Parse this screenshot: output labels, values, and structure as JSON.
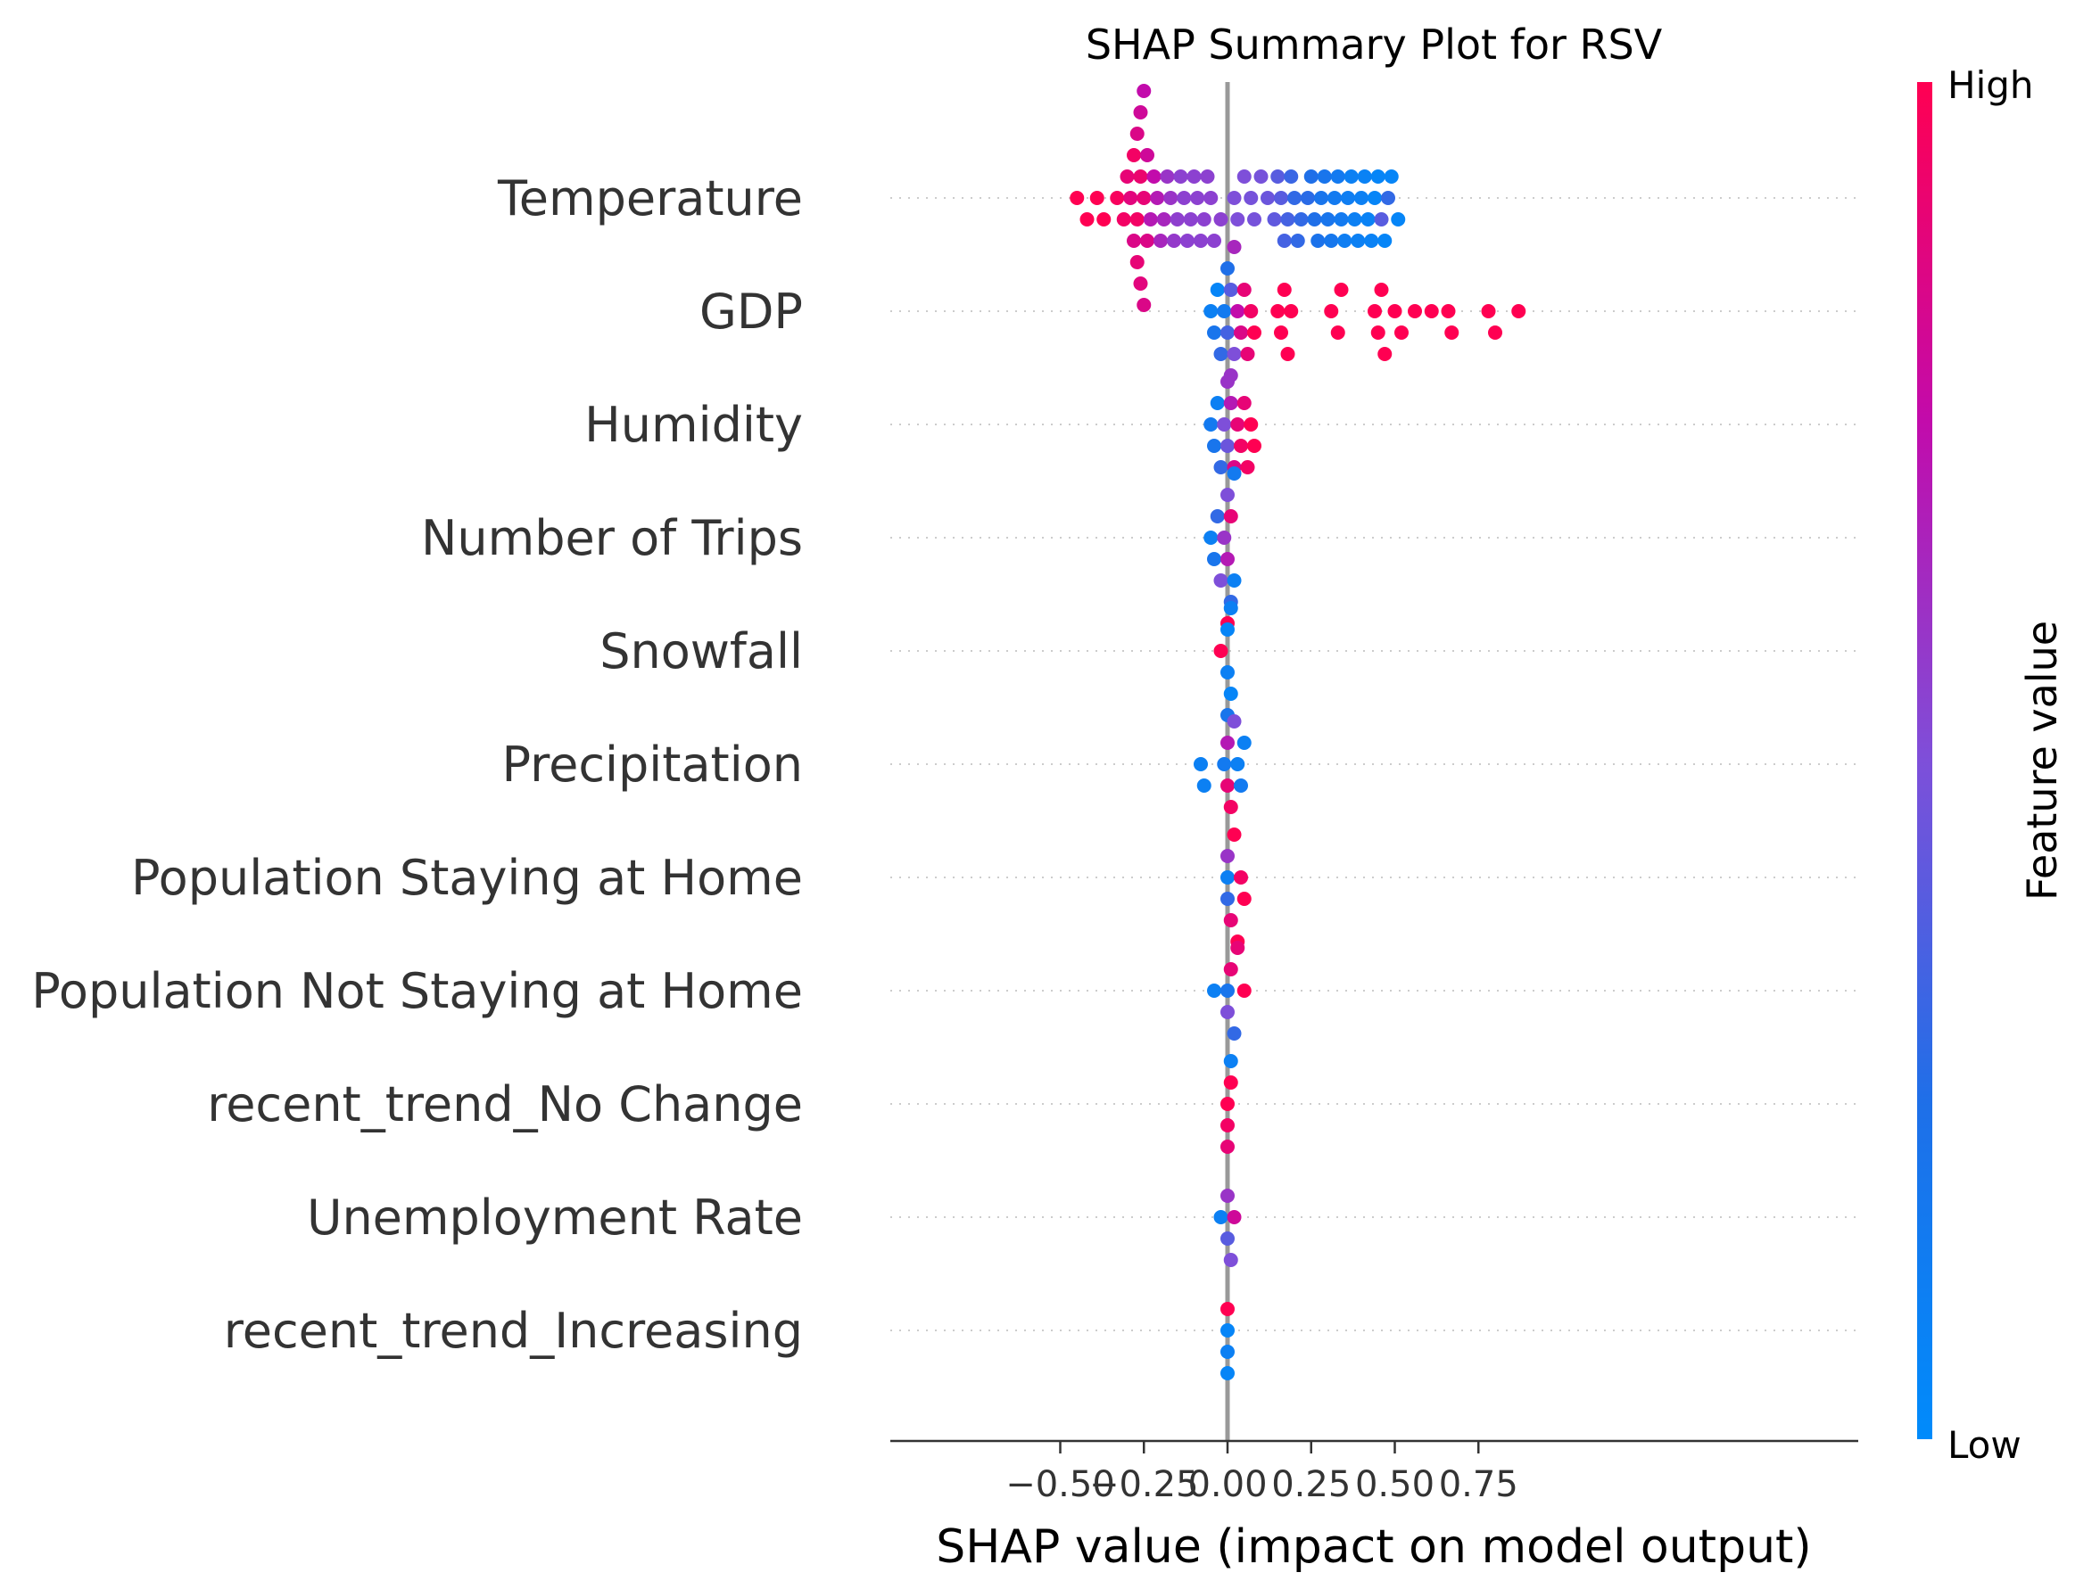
{
  "chart_data": {
    "type": "scatter",
    "title": "SHAP Summary Plot for RSV",
    "xlabel": "SHAP value (impact on model output)",
    "ylabel": "",
    "xlim": [
      -0.5,
      0.94
    ],
    "xticks": [
      -0.5,
      -0.25,
      0.0,
      0.25,
      0.5,
      0.75
    ],
    "xtick_labels": [
      "−0.50",
      "−0.25",
      "0.00",
      "0.25",
      "0.50",
      "0.75"
    ],
    "grid": false,
    "zero_line": 0.0,
    "colorbar": {
      "title": "Feature value",
      "high_label": "High",
      "low_label": "Low",
      "low_color": "#008bfb",
      "high_color": "#ff0052"
    },
    "features": [
      {
        "name": "Temperature",
        "points": [
          [
            -0.45,
            1.0
          ],
          [
            -0.42,
            1.0
          ],
          [
            -0.39,
            1.0
          ],
          [
            -0.37,
            1.0
          ],
          [
            -0.33,
            0.97
          ],
          [
            -0.31,
            0.95
          ],
          [
            -0.3,
            0.9
          ],
          [
            -0.29,
            0.88
          ],
          [
            -0.28,
            0.85
          ],
          [
            -0.28,
            0.95
          ],
          [
            -0.27,
            0.95
          ],
          [
            -0.27,
            0.9
          ],
          [
            -0.27,
            0.85
          ],
          [
            -0.26,
            0.92
          ],
          [
            -0.26,
            0.88
          ],
          [
            -0.26,
            0.8
          ],
          [
            -0.25,
            0.9
          ],
          [
            -0.25,
            0.85
          ],
          [
            -0.25,
            0.75
          ],
          [
            -0.24,
            0.85
          ],
          [
            -0.24,
            0.8
          ],
          [
            -0.23,
            0.7
          ],
          [
            -0.22,
            0.75
          ],
          [
            -0.21,
            0.7
          ],
          [
            -0.2,
            0.65
          ],
          [
            -0.19,
            0.65
          ],
          [
            -0.18,
            0.6
          ],
          [
            -0.17,
            0.6
          ],
          [
            -0.16,
            0.58
          ],
          [
            -0.15,
            0.56
          ],
          [
            -0.14,
            0.55
          ],
          [
            -0.13,
            0.55
          ],
          [
            -0.12,
            0.55
          ],
          [
            -0.11,
            0.55
          ],
          [
            -0.1,
            0.55
          ],
          [
            -0.09,
            0.55
          ],
          [
            -0.08,
            0.55
          ],
          [
            -0.07,
            0.55
          ],
          [
            -0.06,
            0.55
          ],
          [
            -0.05,
            0.55
          ],
          [
            -0.04,
            0.55
          ],
          [
            -0.02,
            0.55
          ],
          [
            0.02,
            0.5
          ],
          [
            0.03,
            0.5
          ],
          [
            0.05,
            0.5
          ],
          [
            0.07,
            0.48
          ],
          [
            0.08,
            0.48
          ],
          [
            0.1,
            0.48
          ],
          [
            0.12,
            0.45
          ],
          [
            0.14,
            0.42
          ],
          [
            0.15,
            0.4
          ],
          [
            0.16,
            0.4
          ],
          [
            0.17,
            0.35
          ],
          [
            0.18,
            0.35
          ],
          [
            0.19,
            0.32
          ],
          [
            0.2,
            0.3
          ],
          [
            0.21,
            0.3
          ],
          [
            0.22,
            0.3
          ],
          [
            0.24,
            0.28
          ],
          [
            0.25,
            0.25
          ],
          [
            0.26,
            0.25
          ],
          [
            0.27,
            0.22
          ],
          [
            0.28,
            0.2
          ],
          [
            0.29,
            0.2
          ],
          [
            0.3,
            0.2
          ],
          [
            0.31,
            0.18
          ],
          [
            0.32,
            0.15
          ],
          [
            0.33,
            0.15
          ],
          [
            0.34,
            0.15
          ],
          [
            0.35,
            0.12
          ],
          [
            0.36,
            0.12
          ],
          [
            0.37,
            0.1
          ],
          [
            0.38,
            0.1
          ],
          [
            0.39,
            0.1
          ],
          [
            0.4,
            0.1
          ],
          [
            0.41,
            0.08
          ],
          [
            0.42,
            0.08
          ],
          [
            0.43,
            0.08
          ],
          [
            0.44,
            0.05
          ],
          [
            0.45,
            0.05
          ],
          [
            0.46,
            0.4
          ],
          [
            0.47,
            0.05
          ],
          [
            0.48,
            0.3
          ],
          [
            0.49,
            0.05
          ],
          [
            0.51,
            0.05
          ]
        ]
      },
      {
        "name": "GDP",
        "points": [
          [
            -0.05,
            0.1
          ],
          [
            -0.04,
            0.2
          ],
          [
            -0.03,
            0.05
          ],
          [
            -0.02,
            0.3
          ],
          [
            -0.01,
            0.15
          ],
          [
            0.0,
            0.35
          ],
          [
            0.0,
            0.25
          ],
          [
            0.01,
            0.4
          ],
          [
            0.01,
            0.6
          ],
          [
            0.02,
            0.5
          ],
          [
            0.02,
            0.65
          ],
          [
            0.03,
            0.75
          ],
          [
            0.04,
            0.85
          ],
          [
            0.05,
            0.9
          ],
          [
            0.06,
            0.9
          ],
          [
            0.07,
            0.95
          ],
          [
            0.08,
            1.0
          ],
          [
            0.15,
            1.0
          ],
          [
            0.16,
            1.0
          ],
          [
            0.17,
            1.0
          ],
          [
            0.18,
            1.0
          ],
          [
            0.19,
            1.0
          ],
          [
            0.31,
            1.0
          ],
          [
            0.33,
            1.0
          ],
          [
            0.34,
            1.0
          ],
          [
            0.44,
            1.0
          ],
          [
            0.45,
            1.0
          ],
          [
            0.46,
            1.0
          ],
          [
            0.47,
            1.0
          ],
          [
            0.5,
            1.0
          ],
          [
            0.52,
            1.0
          ],
          [
            0.56,
            1.0
          ],
          [
            0.61,
            1.0
          ],
          [
            0.66,
            1.0
          ],
          [
            0.67,
            1.0
          ],
          [
            0.78,
            1.0
          ],
          [
            0.8,
            1.0
          ],
          [
            0.87,
            1.0
          ]
        ]
      },
      {
        "name": "Humidity",
        "points": [
          [
            -0.05,
            0.15
          ],
          [
            -0.04,
            0.2
          ],
          [
            -0.03,
            0.1
          ],
          [
            -0.02,
            0.3
          ],
          [
            -0.01,
            0.5
          ],
          [
            0.0,
            0.45
          ],
          [
            0.0,
            0.6
          ],
          [
            0.01,
            0.7
          ],
          [
            0.02,
            0.85
          ],
          [
            0.03,
            0.9
          ],
          [
            0.04,
            0.95
          ],
          [
            0.05,
            0.9
          ],
          [
            0.06,
            0.95
          ],
          [
            0.07,
            1.0
          ],
          [
            0.08,
            1.0
          ]
        ]
      },
      {
        "name": "Number of Trips",
        "points": [
          [
            -0.05,
            0.1
          ],
          [
            -0.04,
            0.2
          ],
          [
            -0.03,
            0.3
          ],
          [
            -0.02,
            0.5
          ],
          [
            -0.01,
            0.6
          ],
          [
            0.0,
            0.7
          ],
          [
            0.0,
            0.5
          ],
          [
            0.01,
            0.9
          ],
          [
            0.01,
            0.3
          ],
          [
            0.02,
            0.1
          ],
          [
            0.02,
            0.15
          ],
          [
            0.0,
            1.0
          ]
        ]
      },
      {
        "name": "Snowfall",
        "points": [
          [
            -0.02,
            1.0
          ],
          [
            0.0,
            0.1
          ],
          [
            0.0,
            0.05
          ],
          [
            0.01,
            0.05
          ],
          [
            0.01,
            0.1
          ],
          [
            0.0,
            0.2
          ]
        ]
      },
      {
        "name": "Precipitation",
        "points": [
          [
            -0.08,
            0.1
          ],
          [
            -0.07,
            0.1
          ],
          [
            -0.01,
            0.15
          ],
          [
            0.0,
            0.9
          ],
          [
            0.0,
            0.7
          ],
          [
            0.01,
            0.95
          ],
          [
            0.02,
            0.5
          ],
          [
            0.03,
            0.1
          ],
          [
            0.04,
            0.15
          ],
          [
            0.05,
            0.1
          ]
        ]
      },
      {
        "name": "Population Staying at Home",
        "points": [
          [
            0.0,
            0.1
          ],
          [
            0.0,
            0.3
          ],
          [
            0.0,
            0.6
          ],
          [
            0.01,
            0.9
          ],
          [
            0.02,
            1.0
          ],
          [
            0.03,
            1.0
          ],
          [
            0.04,
            0.95
          ],
          [
            0.05,
            1.0
          ]
        ]
      },
      {
        "name": "Population Not Staying at Home",
        "points": [
          [
            -0.04,
            0.1
          ],
          [
            0.0,
            0.2
          ],
          [
            0.0,
            0.5
          ],
          [
            0.01,
            0.9
          ],
          [
            0.02,
            0.3
          ],
          [
            0.03,
            0.9
          ],
          [
            0.05,
            1.0
          ]
        ]
      },
      {
        "name": "recent_trend_No Change",
        "points": [
          [
            0.0,
            1.0
          ],
          [
            0.0,
            0.95
          ],
          [
            0.01,
            1.0
          ],
          [
            0.0,
            0.9
          ],
          [
            0.01,
            0.1
          ]
        ]
      },
      {
        "name": "Unemployment Rate",
        "points": [
          [
            -0.02,
            0.1
          ],
          [
            0.0,
            0.4
          ],
          [
            0.0,
            0.6
          ],
          [
            0.01,
            0.5
          ],
          [
            0.02,
            0.8
          ]
        ]
      },
      {
        "name": "recent_trend_Increasing",
        "points": [
          [
            0.0,
            0.05
          ],
          [
            0.0,
            0.1
          ],
          [
            0.0,
            1.0
          ],
          [
            0.0,
            0.05
          ]
        ]
      }
    ]
  }
}
